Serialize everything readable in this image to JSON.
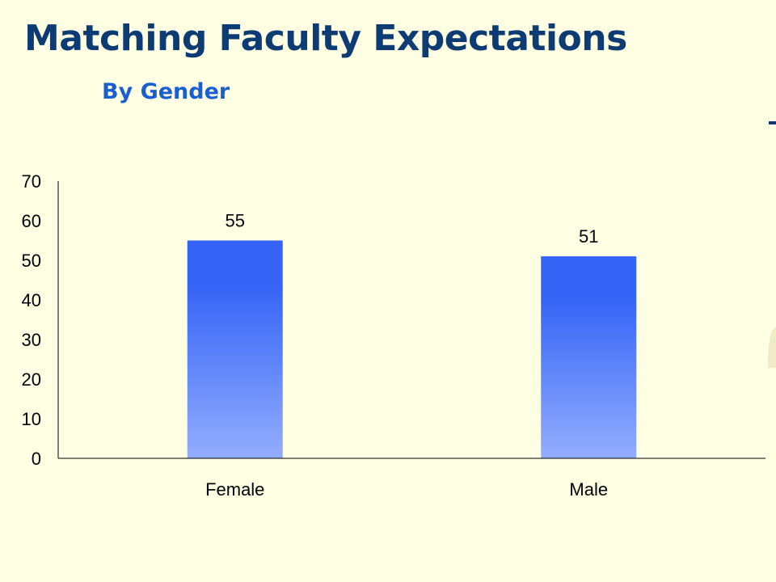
{
  "slide": {
    "title": "Matching Faculty Expectations",
    "subtitle": "By Gender"
  },
  "colors": {
    "background": "#ffffe3",
    "title": "#0d3b73",
    "subtitle": "#1a5fd0",
    "bar_top": "#3563f6",
    "bar_bottom": "#93adfd"
  },
  "chart_data": {
    "type": "bar",
    "categories": [
      "Female",
      "Male"
    ],
    "values": [
      55,
      51
    ],
    "data_labels": [
      "55",
      "51"
    ],
    "ylim": [
      0,
      70
    ],
    "yticks": [
      "0",
      "10",
      "20",
      "30",
      "40",
      "50",
      "60",
      "70"
    ],
    "title": "",
    "xlabel": "",
    "ylabel": "",
    "grid": false,
    "legend": "none"
  }
}
